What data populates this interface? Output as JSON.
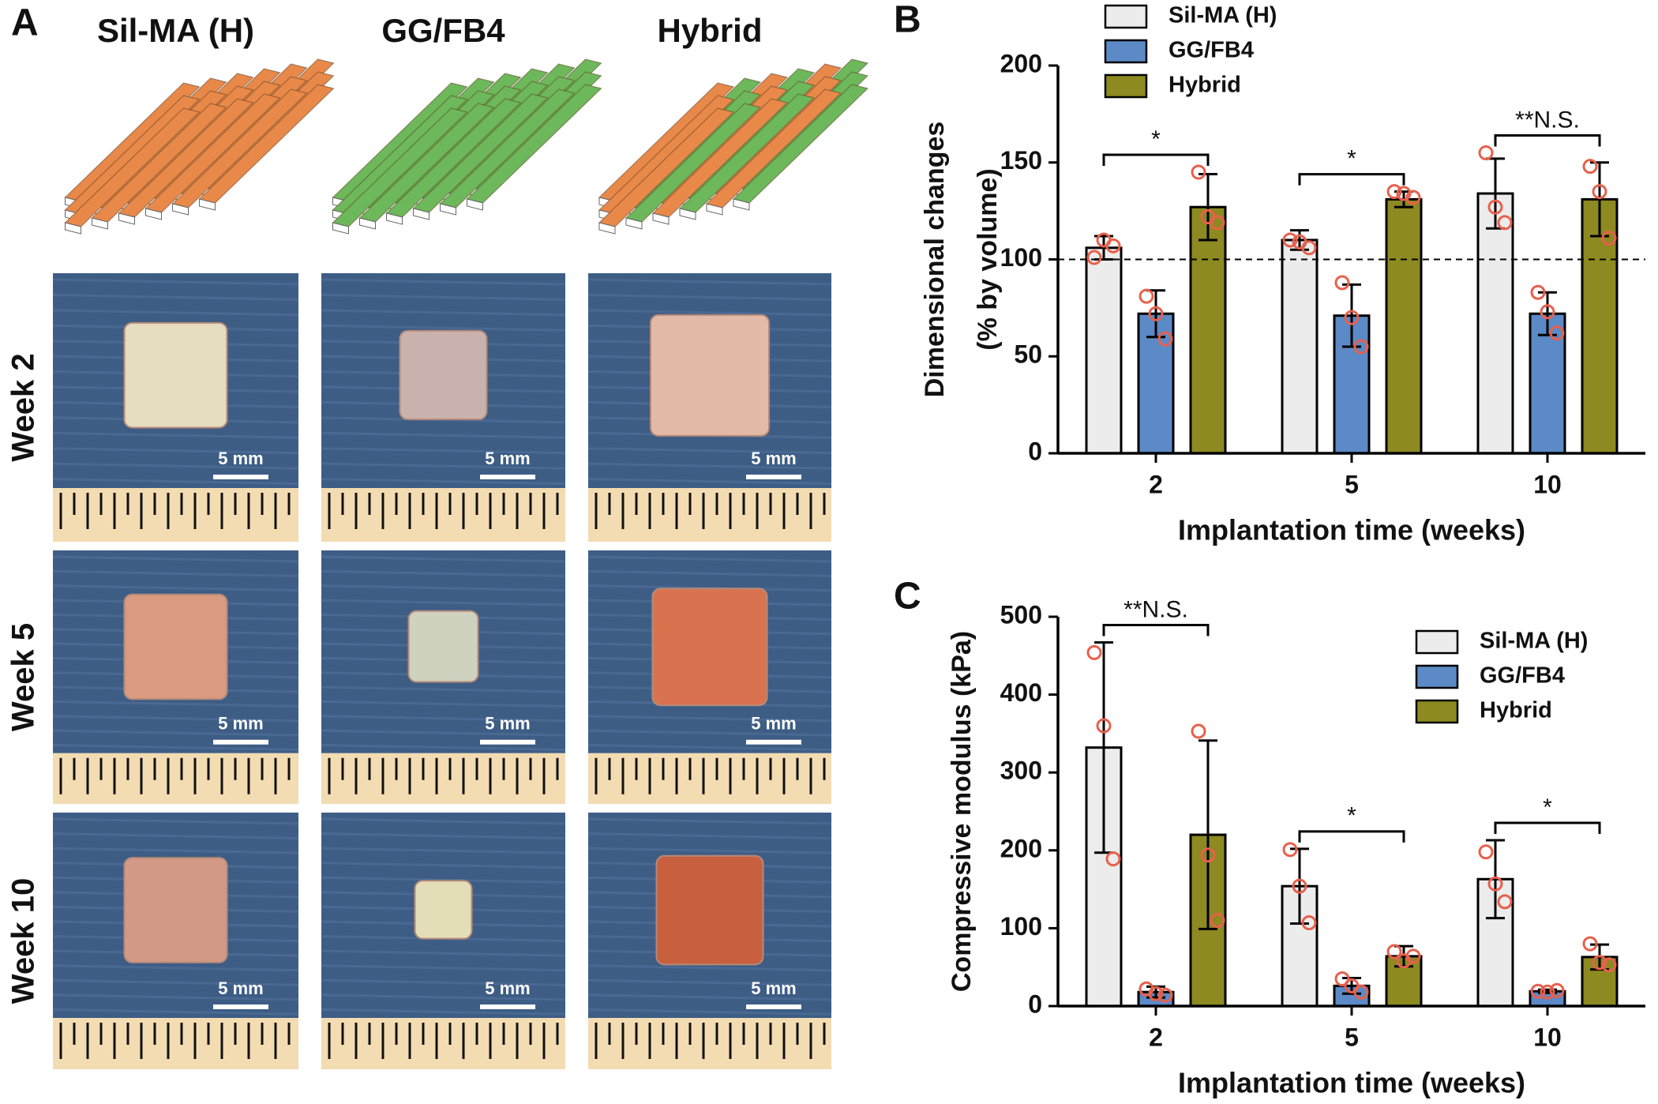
{
  "panel_labels": [
    "A",
    "B",
    "C"
  ],
  "panel_a": {
    "columns": [
      "Sil-MA (H)",
      "GG/FB4",
      "Hybrid"
    ],
    "rows": [
      "Week 2",
      "Week 5",
      "Week 10"
    ],
    "scale_bar": "5 mm"
  },
  "chart_data": [
    {
      "type": "bar",
      "ylabel": [
        "Dimensional changes",
        "(% by volume)"
      ],
      "xlabel": "Implantation time (weeks)",
      "categories": [
        "2",
        "5",
        "10"
      ],
      "ylim": [
        0,
        200
      ],
      "yticks": [
        0,
        50,
        100,
        150,
        200
      ],
      "grid": false,
      "legend": "upper left",
      "reference_line": 100,
      "significance": [
        "*",
        "*",
        "**N.S."
      ],
      "series": [
        {
          "name": "Sil-MA (H)",
          "color": "#ececec",
          "values": [
            106,
            110,
            134
          ],
          "errors": [
            6,
            5,
            18
          ],
          "points": [
            [
              101,
              110,
              107
            ],
            [
              110,
              109,
              106
            ],
            [
              155,
              127,
              119
            ]
          ]
        },
        {
          "name": "GG/FB4",
          "color": "#5b8ac6",
          "values": [
            72,
            71,
            72
          ],
          "errors": [
            12,
            16,
            11
          ],
          "points": [
            [
              81,
              72,
              59
            ],
            [
              88,
              70,
              55
            ],
            [
              83,
              73,
              62
            ]
          ]
        },
        {
          "name": "Hybrid",
          "color": "#8c8a20",
          "values": [
            127,
            131,
            131
          ],
          "errors": [
            17,
            4,
            19
          ],
          "points": [
            [
              145,
              122,
              119
            ],
            [
              135,
              134,
              132
            ],
            [
              148,
              135,
              111
            ]
          ]
        }
      ]
    },
    {
      "type": "bar",
      "ylabel": "Compressive modulus (kPa)",
      "xlabel": "Implantation time (weeks)",
      "categories": [
        "2",
        "5",
        "10"
      ],
      "ylim": [
        0,
        500
      ],
      "yticks": [
        0,
        100,
        200,
        300,
        400,
        500
      ],
      "grid": false,
      "legend": "upper right",
      "significance": [
        "**N.S.",
        "*",
        "*"
      ],
      "series": [
        {
          "name": "Sil-MA (H)",
          "color": "#ececec",
          "values": [
            332,
            154,
            163
          ],
          "errors": [
            135,
            48,
            50
          ],
          "points": [
            [
              454,
              360,
              189
            ],
            [
              201,
              154,
              107
            ],
            [
              198,
              157,
              134
            ]
          ]
        },
        {
          "name": "GG/FB4",
          "color": "#5b8ac6",
          "values": [
            18,
            26,
            19
          ],
          "errors": [
            7,
            10,
            2
          ],
          "points": [
            [
              22,
              16,
              14
            ],
            [
              35,
              26,
              18
            ],
            [
              19,
              18,
              20
            ]
          ]
        },
        {
          "name": "Hybrid",
          "color": "#8c8a20",
          "values": [
            220,
            64,
            63
          ],
          "errors": [
            121,
            13,
            16
          ],
          "points": [
            [
              353,
              194,
              110
            ],
            [
              70,
              58,
              64
            ],
            [
              80,
              56,
              53
            ]
          ]
        }
      ]
    }
  ]
}
